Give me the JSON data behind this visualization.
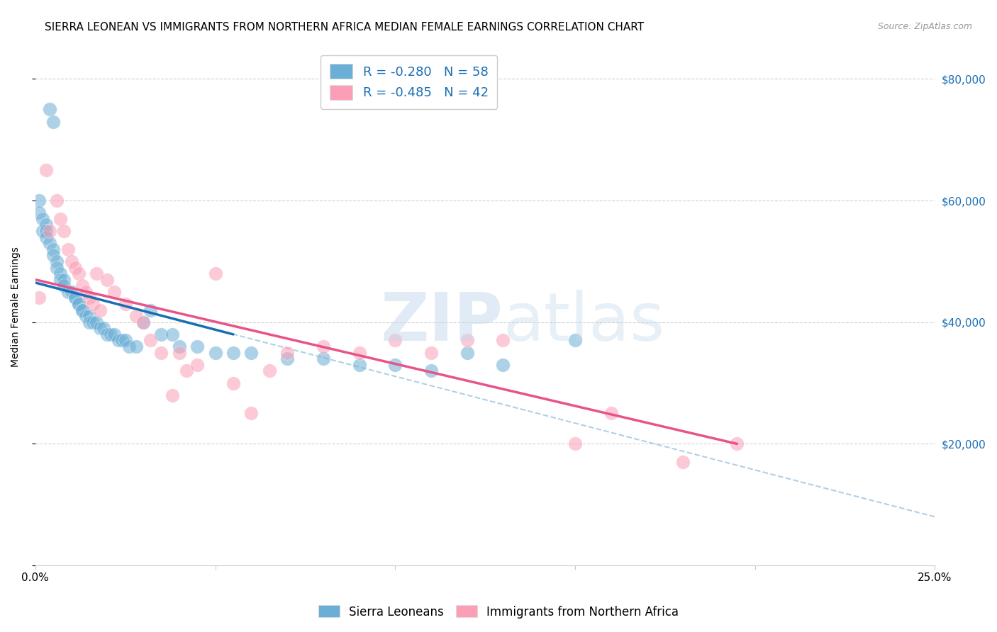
{
  "title": "SIERRA LEONEAN VS IMMIGRANTS FROM NORTHERN AFRICA MEDIAN FEMALE EARNINGS CORRELATION CHART",
  "source": "Source: ZipAtlas.com",
  "ylabel": "Median Female Earnings",
  "xlim": [
    0.0,
    0.25
  ],
  "ylim": [
    0,
    85000
  ],
  "yticks": [
    0,
    20000,
    40000,
    60000,
    80000
  ],
  "ytick_labels": [
    "",
    "$20,000",
    "$40,000",
    "$60,000",
    "$80,000"
  ],
  "xticks": [
    0.0,
    0.05,
    0.1,
    0.15,
    0.2,
    0.25
  ],
  "xtick_labels": [
    "0.0%",
    "",
    "",
    "",
    "",
    "25.0%"
  ],
  "blue_R": -0.28,
  "blue_N": 58,
  "pink_R": -0.485,
  "pink_N": 42,
  "blue_scatter_x": [
    0.004,
    0.005,
    0.001,
    0.001,
    0.002,
    0.002,
    0.003,
    0.003,
    0.003,
    0.004,
    0.005,
    0.005,
    0.006,
    0.006,
    0.007,
    0.007,
    0.008,
    0.008,
    0.009,
    0.01,
    0.011,
    0.011,
    0.012,
    0.012,
    0.013,
    0.013,
    0.014,
    0.015,
    0.015,
    0.016,
    0.017,
    0.018,
    0.019,
    0.02,
    0.021,
    0.022,
    0.023,
    0.024,
    0.025,
    0.026,
    0.028,
    0.03,
    0.032,
    0.035,
    0.038,
    0.04,
    0.045,
    0.05,
    0.055,
    0.06,
    0.07,
    0.08,
    0.09,
    0.1,
    0.11,
    0.12,
    0.13,
    0.15
  ],
  "blue_scatter_y": [
    75000,
    73000,
    60000,
    58000,
    57000,
    55000,
    56000,
    55000,
    54000,
    53000,
    52000,
    51000,
    50000,
    49000,
    48000,
    47000,
    47000,
    46000,
    45000,
    45000,
    44000,
    44000,
    43000,
    43000,
    42000,
    42000,
    41000,
    41000,
    40000,
    40000,
    40000,
    39000,
    39000,
    38000,
    38000,
    38000,
    37000,
    37000,
    37000,
    36000,
    36000,
    40000,
    42000,
    38000,
    38000,
    36000,
    36000,
    35000,
    35000,
    35000,
    34000,
    34000,
    33000,
    33000,
    32000,
    35000,
    33000,
    37000
  ],
  "pink_scatter_x": [
    0.001,
    0.003,
    0.004,
    0.006,
    0.007,
    0.008,
    0.009,
    0.01,
    0.011,
    0.012,
    0.013,
    0.014,
    0.015,
    0.016,
    0.017,
    0.018,
    0.02,
    0.022,
    0.025,
    0.028,
    0.03,
    0.032,
    0.035,
    0.038,
    0.04,
    0.042,
    0.045,
    0.05,
    0.055,
    0.06,
    0.065,
    0.07,
    0.08,
    0.09,
    0.1,
    0.11,
    0.12,
    0.13,
    0.15,
    0.16,
    0.18,
    0.195
  ],
  "pink_scatter_y": [
    44000,
    65000,
    55000,
    60000,
    57000,
    55000,
    52000,
    50000,
    49000,
    48000,
    46000,
    45000,
    44000,
    43000,
    48000,
    42000,
    47000,
    45000,
    43000,
    41000,
    40000,
    37000,
    35000,
    28000,
    35000,
    32000,
    33000,
    48000,
    30000,
    25000,
    32000,
    35000,
    36000,
    35000,
    37000,
    35000,
    37000,
    37000,
    20000,
    25000,
    17000,
    20000
  ],
  "blue_line_x": [
    0.0,
    0.055
  ],
  "blue_line_y": [
    46500,
    38000
  ],
  "pink_line_x": [
    0.0,
    0.195
  ],
  "pink_line_y": [
    47000,
    20000
  ],
  "dash_line_x": [
    0.0,
    0.25
  ],
  "dash_line_y": [
    46500,
    8000
  ],
  "background_color": "#ffffff",
  "blue_color": "#6baed6",
  "pink_color": "#fa9fb5",
  "blue_line_color": "#1a6eb5",
  "pink_line_color": "#e8538a",
  "dash_line_color": "#afd0e8",
  "grid_color": "#cccccc",
  "title_fontsize": 11,
  "axis_label_fontsize": 10,
  "tick_fontsize": 11,
  "right_tick_color": "#1a6eb5"
}
